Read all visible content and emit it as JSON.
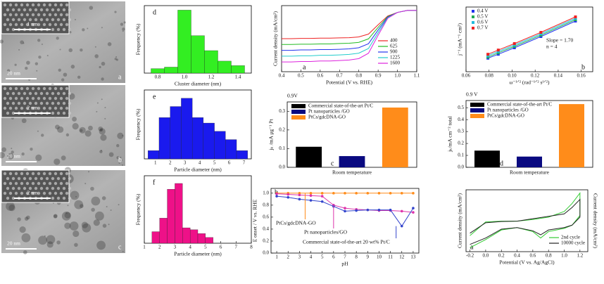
{
  "images": [
    {
      "inset_label": "1 nm",
      "scale_label": "20 nm",
      "panel_label": "a"
    },
    {
      "inset_label": "2 nm",
      "scale_label": "20 nm",
      "panel_label": "b"
    },
    {
      "inset_label": "2 nm",
      "scale_label": "20 nm",
      "panel_label": "c"
    }
  ],
  "chart_data": [
    {
      "type": "histogram",
      "panel_label": "d",
      "xlabel": "Cluster diameter (nm)",
      "ylabel": "Frequency (%)",
      "color": "#33ee22",
      "bins": [
        0.75,
        0.85,
        0.95,
        1.05,
        1.15,
        1.25,
        1.35,
        1.45
      ],
      "values": [
        3,
        4,
        42,
        25,
        15,
        8,
        5
      ],
      "xlim": [
        0.7,
        1.5
      ],
      "ylim": [
        0,
        45
      ],
      "xticks": [
        0.8,
        {
          "value": 1,
          "label": "1.0"
        },
        1.2,
        1.4
      ]
    },
    {
      "type": "histogram",
      "panel_label": "e",
      "xlabel": "Particle diameter (nm)",
      "ylabel": "Frequency (%)",
      "color": "#1a1aee",
      "bins": [
        0.5,
        1.25,
        2,
        2.75,
        3.5,
        4.25,
        5,
        5.75,
        6.5,
        7.25
      ],
      "values": [
        3,
        15,
        19,
        22,
        15,
        13,
        10,
        7,
        3
      ],
      "xlim": [
        0.25,
        7.5
      ],
      "ylim": [
        0,
        25
      ],
      "xticks": [
        1,
        2,
        3,
        4,
        5,
        6,
        7
      ]
    },
    {
      "type": "histogram",
      "panel_label": "f",
      "xlabel": "Particle diameter (nm)",
      "ylabel": "Frequency (%)",
      "color": "#ee1188",
      "bins": [
        1.5,
        2,
        2.5,
        3,
        3.5,
        4,
        4.5,
        5,
        5.5
      ],
      "values": [
        6,
        13,
        28,
        31,
        8,
        7,
        5,
        3
      ],
      "xlim": [
        1,
        8
      ],
      "ylim": [
        0,
        35
      ],
      "xticks": [
        1,
        2,
        3,
        4,
        5,
        6,
        7,
        8
      ]
    },
    {
      "type": "line",
      "panel_label": "a",
      "xlabel": "Potential (V vs. RHE)",
      "ylabel": "Current density (mA/cm²)",
      "legend": "lower right",
      "x": [
        0.4,
        0.45,
        0.5,
        0.55,
        0.6,
        0.65,
        0.7,
        0.75,
        0.8,
        0.85,
        0.9,
        0.95,
        1.0,
        1.05,
        1.1
      ],
      "series": [
        {
          "name": "400",
          "color": "#ee2222",
          "values": [
            -2.6,
            -2.6,
            -2.57,
            -2.57,
            -2.55,
            -2.55,
            -2.52,
            -2.5,
            -2.42,
            -2.13,
            -1.17,
            -0.26,
            0.1,
            0.3,
            0.3
          ]
        },
        {
          "name": "625",
          "color": "#22bb22",
          "values": [
            -3.2,
            -3.2,
            -3.17,
            -3.17,
            -3.14,
            -3.14,
            -3.1,
            -3.07,
            -2.98,
            -2.62,
            -1.44,
            -0.32,
            0.1,
            0.3,
            0.3
          ]
        },
        {
          "name": "900",
          "color": "#2233ee",
          "values": [
            -3.8,
            -3.8,
            -3.76,
            -3.76,
            -3.72,
            -3.72,
            -3.69,
            -3.65,
            -3.53,
            -3.12,
            -1.71,
            -0.38,
            0.1,
            0.3,
            0.3
          ]
        },
        {
          "name": "1225",
          "color": "#22cccc",
          "values": [
            -4.4,
            -4.4,
            -4.36,
            -4.36,
            -4.31,
            -4.31,
            -4.27,
            -4.22,
            -4.09,
            -3.61,
            -1.98,
            -0.44,
            0.1,
            0.3,
            0.3
          ]
        },
        {
          "name": "1600",
          "color": "#dd22dd",
          "values": [
            -5.0,
            -5.0,
            -4.95,
            -4.95,
            -4.9,
            -4.9,
            -4.85,
            -4.8,
            -4.65,
            -4.1,
            -2.25,
            -0.5,
            0.1,
            0.3,
            0.3
          ]
        }
      ],
      "xlim": [
        0.4,
        1.1
      ],
      "ylim": [
        -6,
        0.8
      ],
      "xticks": [
        0.4,
        0.5,
        0.6,
        0.7,
        0.8,
        0.9,
        {
          "value": 1,
          "label": "1.0"
        },
        1.1
      ]
    },
    {
      "type": "line",
      "marker": "square",
      "panel_label": "b",
      "xlabel": "ω⁻¹ᐟ² (rad⁻¹ᐟ² s¹ᐟ²)",
      "ylabel": "j⁻¹ (mA⁻¹ cm²)",
      "legend": "upper left",
      "annotations": [
        "Slope = 1.70",
        "n = 4"
      ],
      "x": [
        0.079,
        0.088,
        0.102,
        0.125,
        0.155
      ],
      "series": [
        {
          "name": "0.4 V",
          "color": "#2233ee",
          "values": [
            0.168,
            0.182,
            0.205,
            0.245,
            0.3
          ]
        },
        {
          "name": "0.5 V",
          "color": "#22aa55",
          "values": [
            0.172,
            0.187,
            0.21,
            0.25,
            0.305
          ]
        },
        {
          "name": "0.6 V",
          "color": "#22bbdd",
          "values": [
            0.177,
            0.192,
            0.215,
            0.255,
            0.31
          ]
        },
        {
          "name": "0.7 V",
          "color": "#ee2222",
          "values": [
            0.182,
            0.197,
            0.22,
            0.26,
            0.315
          ]
        }
      ],
      "xlim": [
        0.06,
        0.17
      ],
      "ylim": [
        0.12,
        0.35
      ],
      "xticks": [
        0.06,
        0.08,
        {
          "value": 0.1,
          "label": "0.10"
        },
        0.12,
        0.14,
        0.16
      ]
    },
    {
      "type": "bar",
      "panel_label": "c",
      "xlabel": "Room temperature",
      "ylabel": "jₖ /mA μg⁻¹ Pt",
      "legend": "upper left",
      "annotations": [
        "0.9V"
      ],
      "categories": [
        null
      ],
      "series": [
        {
          "name": "Commercial state-of-the-art Pt/C",
          "color": "#000000",
          "values": [
            0.11
          ]
        },
        {
          "name": "Pt nanoparticles /GO",
          "color": "#0a0a80",
          "values": [
            0.06
          ]
        },
        {
          "name": "PtCs/gdcDNA-GO",
          "color": "#ff8c1a",
          "values": [
            0.32
          ]
        }
      ],
      "ylim": [
        0,
        0.35
      ],
      "yticks": [
        {
          "value": 0,
          "label": "0.0"
        },
        0.1,
        0.2,
        0.3
      ]
    },
    {
      "type": "bar",
      "panel_label": "d",
      "xlabel": "Room temperature",
      "ylabel": "jₖ/mA cm⁻² total",
      "legend": "upper left",
      "annotations": [
        "0.9 V"
      ],
      "categories": [
        null
      ],
      "series": [
        {
          "name": "Commercial state-of-the-art Pt/C",
          "color": "#000000",
          "values": [
            0.14
          ]
        },
        {
          "name": "Pt nanoparticles /GO",
          "color": "#0a0a80",
          "values": [
            0.09
          ]
        },
        {
          "name": "PtCs/gdcDNA-GO",
          "color": "#ff8c1a",
          "values": [
            0.53
          ]
        }
      ],
      "ylim": [
        0,
        0.56
      ],
      "yticks": [
        {
          "value": 0,
          "label": "0.0"
        },
        0.1,
        0.2,
        0.3,
        0.4,
        0.5
      ]
    },
    {
      "type": "line",
      "marker": "circle",
      "panel_label": "b",
      "xlabel": "pH",
      "ylabel": "E onset / V vs. RHE",
      "legend": "inline",
      "x": [
        1,
        2,
        3,
        4,
        5,
        6,
        7,
        8,
        9,
        10,
        11,
        12,
        13
      ],
      "series": [
        {
          "name": "PtCs/gdcDNA-GO",
          "color": "#ff8c1a",
          "values": [
            1,
            1,
            1,
            1,
            1,
            1,
            1,
            1,
            1,
            1,
            1,
            1,
            1
          ]
        },
        {
          "name": "Pt nanoparticles/GO",
          "color": "#dd33aa",
          "values": [
            0.99,
            0.98,
            0.97,
            0.96,
            0.95,
            0.8,
            0.75,
            0.73,
            0.72,
            0.71,
            0.71,
            0.7,
            0.68
          ]
        },
        {
          "name": "Commercial state-of-the-art 20 wt% Pt/C",
          "color": "#3344cc",
          "values": [
            0.95,
            0.93,
            0.9,
            0.88,
            0.86,
            0.78,
            0.7,
            0.71,
            0.72,
            0.72,
            0.72,
            0.45,
            0.75
          ]
        }
      ],
      "xlim": [
        0.5,
        13.5
      ],
      "ylim": [
        0,
        1.08
      ],
      "xticks": [
        1,
        2,
        3,
        4,
        5,
        6,
        7,
        8,
        9,
        10,
        11,
        12,
        13
      ],
      "yticks": [
        {
          "value": 0,
          "label": "0.0"
        },
        0.2,
        0.4,
        0.6,
        0.8,
        {
          "value": 1,
          "label": "1.0"
        }
      ]
    },
    {
      "type": "line",
      "panel_label": "a",
      "xlabel": "Potential (V vs. Ag/AgCl)",
      "ylabel": "Current density (mA/cm²)",
      "y2label": "Current density (mA/cm²)",
      "legend": "lower right",
      "x": [
        -0.2,
        0,
        0.2,
        0.4,
        0.6,
        0.8,
        1.0,
        1.1,
        1.2,
        1.2,
        1.1,
        1.0,
        0.8,
        0.7,
        0.6,
        0.4,
        0.2,
        0,
        -0.2
      ],
      "series": [
        {
          "name": "2nd cycle",
          "color": "#33cc33",
          "values": [
            -1.5,
            0.2,
            0.3,
            0.3,
            0.5,
            0.8,
            1.5,
            2.5,
            3.8,
            1.0,
            -0.2,
            -0.6,
            -1.0,
            -1.8,
            -1.0,
            -0.5,
            -0.8,
            -2.0,
            -3.0
          ]
        },
        {
          "name": "10000 cycle",
          "color": "#222222",
          "values": [
            -1.2,
            0.1,
            0.25,
            0.3,
            0.6,
            0.9,
            1.2,
            2.0,
            3.0,
            0.8,
            -0.2,
            -0.5,
            -0.8,
            -1.4,
            -0.9,
            -0.5,
            -0.7,
            -1.8,
            -2.6
          ]
        }
      ],
      "xlim": [
        -0.25,
        1.3
      ],
      "ylim": [
        -3.5,
        4.2
      ],
      "xticks": [
        -0.2,
        {
          "value": 0,
          "label": "0.0"
        },
        0.2,
        0.4,
        0.6,
        0.8,
        {
          "value": 1,
          "label": "1.0"
        },
        1.2
      ]
    }
  ]
}
